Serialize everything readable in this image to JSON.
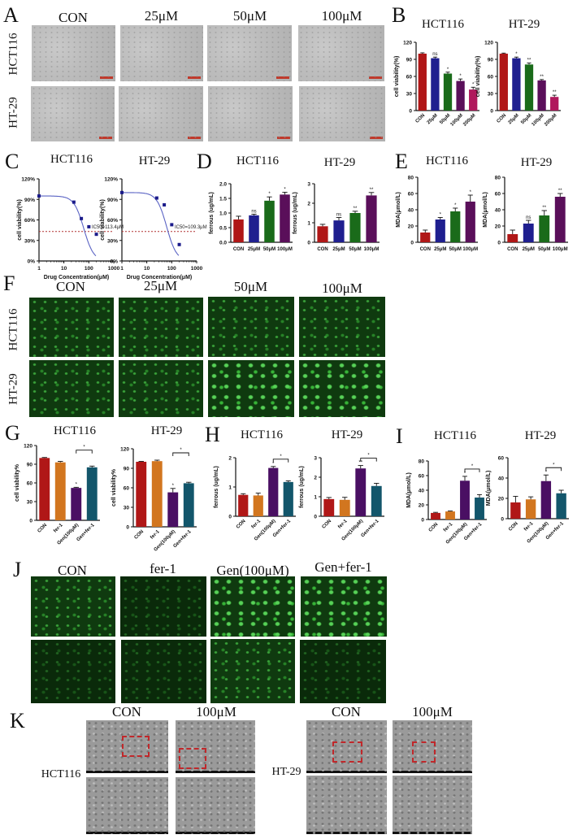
{
  "figure": {
    "panel_labels": [
      "A",
      "B",
      "C",
      "D",
      "E",
      "F",
      "G",
      "H",
      "I",
      "J",
      "K"
    ],
    "colors": {
      "con": "#b01717",
      "c25": "#1f1f8f",
      "c50": "#1a6b1a",
      "c100": "#5a0f5a",
      "c200": "#b0185c",
      "fer1": "#d2761f",
      "gen": "#4a0f63",
      "genfer": "#13566b",
      "curve": "#5a63c4",
      "ic50_line": "#b03030",
      "roi": "#c0282b"
    }
  },
  "panelA": {
    "label": "A",
    "columns": [
      "CON",
      "25μM",
      "50μM",
      "100μM"
    ],
    "rows": [
      "HCT116",
      "HT-29"
    ]
  },
  "panelF": {
    "label": "F",
    "columns": [
      "CON",
      "25μM",
      "50μM",
      "100μM"
    ],
    "rows": [
      "HCT116",
      "HT-29"
    ]
  },
  "panelJ": {
    "label": "J",
    "columns": [
      "CON",
      "fer-1",
      "Gen(100μM)",
      "Gen+fer-1"
    ]
  },
  "panelK": {
    "label": "K",
    "columns": [
      "CON",
      "100μM"
    ],
    "rows": [
      "HCT116",
      "HT-29"
    ]
  },
  "chart_data": [
    {
      "panel": "B",
      "title": "HCT116",
      "type": "bar",
      "categories": [
        "CON",
        "25μM",
        "50μM",
        "100μM",
        "200μM"
      ],
      "values": [
        100,
        92,
        65,
        52,
        37
      ],
      "errors": [
        1.5,
        2,
        2.5,
        3.5,
        4
      ],
      "annotations": [
        "",
        "ns",
        "*",
        "*",
        "*"
      ],
      "ylabel": "cell viability(%)",
      "ylim": [
        0,
        120
      ],
      "yticks": [
        0,
        30,
        60,
        90,
        120
      ]
    },
    {
      "panel": "B",
      "title": "HT-29",
      "type": "bar",
      "categories": [
        "CON",
        "25μM",
        "50μM",
        "100μM",
        "200μM"
      ],
      "values": [
        100,
        92,
        81,
        53,
        24
      ],
      "errors": [
        1,
        2,
        2.5,
        1.5,
        3
      ],
      "annotations": [
        "",
        "*",
        "**",
        "**",
        "**"
      ],
      "ylabel": "cell viability(%)",
      "ylim": [
        0,
        120
      ],
      "yticks": [
        0,
        30,
        60,
        90,
        120
      ]
    },
    {
      "panel": "C",
      "title": "HCT116",
      "type": "scatter",
      "x": [
        1,
        25,
        50,
        100,
        200
      ],
      "y": [
        95,
        86,
        62,
        50,
        39
      ],
      "fit": "dose-response",
      "annotation": "IC50=113.4μM",
      "threshold_line": 50,
      "xlabel": "Drug Concentration(μM)",
      "ylabel": "cell viability(%)",
      "xscale": "log",
      "xlim": [
        1,
        1000
      ],
      "xticks": [
        "1",
        "10",
        "100",
        "1000"
      ],
      "ylim": [
        0,
        120
      ],
      "yticks": [
        "0%",
        "30%",
        "60%",
        "90%",
        "120%"
      ]
    },
    {
      "panel": "C",
      "title": "HT-29",
      "type": "scatter",
      "x": [
        1,
        25,
        50,
        100,
        200
      ],
      "y": [
        100,
        92,
        82,
        53,
        24
      ],
      "fit": "dose-response",
      "annotation": "IC50=109.3μM",
      "threshold_line": 50,
      "xlabel": "Drug Concentration(μM)",
      "ylabel": "cell viability(%)",
      "xscale": "log",
      "xlim": [
        1,
        1000
      ],
      "xticks": [
        "1",
        "10",
        "100",
        "1000"
      ],
      "ylim": [
        0,
        120
      ],
      "yticks": [
        "0%",
        "30%",
        "60%",
        "90%",
        "120%"
      ]
    },
    {
      "panel": "D",
      "title": "HCT116",
      "type": "bar",
      "categories": [
        "CON",
        "25μM",
        "50μM",
        "100μM"
      ],
      "values": [
        0.78,
        0.92,
        1.42,
        1.63
      ],
      "errors": [
        0.11,
        0.04,
        0.13,
        0.08
      ],
      "annotations": [
        "",
        "ns",
        "*",
        "*"
      ],
      "ylabel": "ferrous (ug/mL)",
      "ylim": [
        0,
        2.0
      ],
      "yticks": [
        "0.0",
        "0.5",
        "1.0",
        "1.5",
        "2.0"
      ]
    },
    {
      "panel": "D",
      "title": "HT-29",
      "type": "bar",
      "categories": [
        "CON",
        "25μM",
        "50μM",
        "100μM"
      ],
      "values": [
        0.82,
        1.12,
        1.5,
        2.4
      ],
      "errors": [
        0.1,
        0.15,
        0.09,
        0.15
      ],
      "annotations": [
        "",
        "ns",
        "**",
        "**"
      ],
      "ylabel": "ferrous (ug/mL)",
      "ylim": [
        0,
        3
      ],
      "yticks": [
        "0",
        "1",
        "2",
        "3"
      ]
    },
    {
      "panel": "E",
      "title": "HCT116",
      "type": "bar",
      "categories": [
        "CON",
        "25μM",
        "50μM",
        "100μM"
      ],
      "values": [
        12,
        28,
        38,
        50
      ],
      "errors": [
        3,
        2.5,
        4,
        8
      ],
      "annotations": [
        "",
        "*",
        "*",
        "*"
      ],
      "ylabel": "MDA(μmol/L)",
      "ylim": [
        0,
        80
      ],
      "yticks": [
        "0",
        "20",
        "40",
        "60",
        "80"
      ]
    },
    {
      "panel": "E",
      "title": "HT-29",
      "type": "bar",
      "categories": [
        "CON",
        "25μM",
        "50μM",
        "100μM"
      ],
      "values": [
        10,
        23,
        33,
        56
      ],
      "errors": [
        5,
        4,
        6,
        4
      ],
      "annotations": [
        "",
        "ns",
        "**",
        "**"
      ],
      "ylabel": "MDA(μmol/L)",
      "ylim": [
        0,
        80
      ],
      "yticks": [
        "0",
        "20",
        "40",
        "60",
        "80"
      ]
    },
    {
      "panel": "G",
      "title": "HCT116",
      "type": "bar",
      "categories": [
        "CON",
        "fer-1",
        "Gen(100μM)",
        "Gen+fer-1"
      ],
      "values": [
        100,
        93,
        52,
        85
      ],
      "errors": [
        0.8,
        1.5,
        1,
        2
      ],
      "annotations": [
        "",
        "",
        "*",
        ""
      ],
      "bracket": {
        "from": 2,
        "to": 3,
        "label": "*"
      },
      "ylabel": "cell viability%",
      "ylim": [
        0,
        120
      ],
      "yticks": [
        "0",
        "30",
        "60",
        "90",
        "120"
      ]
    },
    {
      "panel": "G",
      "title": "HT-29",
      "type": "bar",
      "categories": [
        "CON",
        "fer-1",
        "Gen(100μM)",
        "Gen+fer-1"
      ],
      "values": [
        100,
        101,
        53,
        67
      ],
      "errors": [
        0.6,
        1.5,
        6,
        1.5
      ],
      "annotations": [
        "",
        "",
        "*",
        ""
      ],
      "bracket": {
        "from": 2,
        "to": 3,
        "label": "*"
      },
      "ylabel": "cell viability%",
      "ylim": [
        0,
        120
      ],
      "yticks": [
        "0",
        "30",
        "60",
        "90",
        "120"
      ]
    },
    {
      "panel": "H",
      "title": "HCT116",
      "type": "bar",
      "categories": [
        "CON",
        "fer-1",
        "Gen(100μM)",
        "Gen+fer-1"
      ],
      "values": [
        0.73,
        0.71,
        1.65,
        1.17
      ],
      "errors": [
        0.04,
        0.08,
        0.05,
        0.04
      ],
      "annotations": [
        "",
        "",
        "*",
        ""
      ],
      "bracket": {
        "from": 2,
        "to": 3,
        "label": "*"
      },
      "ylabel": "ferrous (ug/mL)",
      "ylim": [
        0,
        2
      ],
      "yticks": [
        "0",
        "1",
        "2"
      ]
    },
    {
      "panel": "H",
      "title": "HT-29",
      "type": "bar",
      "categories": [
        "CON",
        "fer-1",
        "Gen(100μM)",
        "Gen+fer-1"
      ],
      "values": [
        0.88,
        0.84,
        2.45,
        1.55
      ],
      "errors": [
        0.08,
        0.13,
        0.15,
        0.14
      ],
      "annotations": [
        "",
        "",
        "**",
        ""
      ],
      "bracket": {
        "from": 2,
        "to": 3,
        "label": "*"
      },
      "ylabel": "ferrous (ug/mL)",
      "ylim": [
        0,
        3
      ],
      "yticks": [
        "0",
        "1",
        "2",
        "3"
      ]
    },
    {
      "panel": "I",
      "title": "HCT116",
      "type": "bar",
      "categories": [
        "CON",
        "fer-1",
        "Gen(100μM)",
        "Gen+fer-1"
      ],
      "values": [
        9,
        11,
        53,
        30
      ],
      "errors": [
        0.8,
        0.6,
        6,
        4
      ],
      "annotations": [
        "",
        "",
        "*",
        ""
      ],
      "bracket": {
        "from": 2,
        "to": 3,
        "label": "*"
      },
      "ylabel": "MDA(μmol/L)",
      "ylim": [
        0,
        80
      ],
      "yticks": [
        "0",
        "20",
        "40",
        "60",
        "80"
      ]
    },
    {
      "panel": "I",
      "title": "HT-29",
      "type": "bar",
      "categories": [
        "CON",
        "fer-1",
        "Gen(100μM)",
        "Gen+fer-1"
      ],
      "values": [
        16,
        19,
        37,
        25
      ],
      "errors": [
        6,
        2.5,
        6,
        3
      ],
      "annotations": [
        "",
        "",
        "*",
        ""
      ],
      "bracket": {
        "from": 2,
        "to": 3,
        "label": "*"
      },
      "ylabel": "MDA(μmol/L)",
      "ylim": [
        0,
        60
      ],
      "yticks": [
        "0",
        "20",
        "40",
        "60"
      ]
    }
  ]
}
